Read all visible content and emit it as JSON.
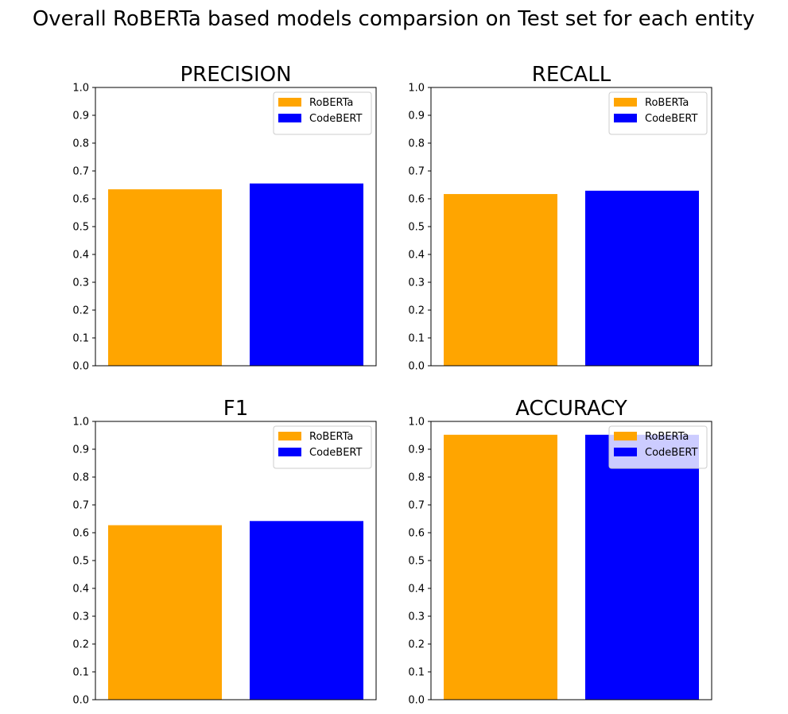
{
  "title": "Overall RoBERTa based models comparsion on Test set for each entity",
  "legend": [
    {
      "label": "RoBERTa",
      "color": "#ffa500"
    },
    {
      "label": "CodeBERT",
      "color": "#0000ff"
    }
  ],
  "chart_data": [
    {
      "type": "bar",
      "title": "PRECISION",
      "categories": [
        "RoBERTa",
        "CodeBERT"
      ],
      "series": [
        {
          "values": [
            0.634,
            0.655
          ]
        }
      ],
      "colors": [
        "#ffa500",
        "#0000ff"
      ],
      "xlabel": "",
      "ylabel": "",
      "ylim": [
        0,
        1
      ],
      "yticks": [
        "0.0",
        "0.1",
        "0.2",
        "0.3",
        "0.4",
        "0.5",
        "0.6",
        "0.7",
        "0.8",
        "0.9",
        "1.0"
      ],
      "grid": false,
      "legend_position": "top-right"
    },
    {
      "type": "bar",
      "title": "RECALL",
      "categories": [
        "RoBERTa",
        "CodeBERT"
      ],
      "series": [
        {
          "values": [
            0.617,
            0.629
          ]
        }
      ],
      "colors": [
        "#ffa500",
        "#0000ff"
      ],
      "xlabel": "",
      "ylabel": "",
      "ylim": [
        0,
        1
      ],
      "yticks": [
        "0.0",
        "0.1",
        "0.2",
        "0.3",
        "0.4",
        "0.5",
        "0.6",
        "0.7",
        "0.8",
        "0.9",
        "1.0"
      ],
      "grid": false,
      "legend_position": "top-right"
    },
    {
      "type": "bar",
      "title": "F1",
      "categories": [
        "RoBERTa",
        "CodeBERT"
      ],
      "series": [
        {
          "values": [
            0.627,
            0.642
          ]
        }
      ],
      "colors": [
        "#ffa500",
        "#0000ff"
      ],
      "xlabel": "",
      "ylabel": "",
      "ylim": [
        0,
        1
      ],
      "yticks": [
        "0.0",
        "0.1",
        "0.2",
        "0.3",
        "0.4",
        "0.5",
        "0.6",
        "0.7",
        "0.8",
        "0.9",
        "1.0"
      ],
      "grid": false,
      "legend_position": "top-right"
    },
    {
      "type": "bar",
      "title": "ACCURACY",
      "categories": [
        "RoBERTa",
        "CodeBERT"
      ],
      "series": [
        {
          "values": [
            0.952,
            0.952
          ]
        }
      ],
      "colors": [
        "#ffa500",
        "#0000ff"
      ],
      "xlabel": "",
      "ylabel": "",
      "ylim": [
        0,
        1
      ],
      "yticks": [
        "0.0",
        "0.1",
        "0.2",
        "0.3",
        "0.4",
        "0.5",
        "0.6",
        "0.7",
        "0.8",
        "0.9",
        "1.0"
      ],
      "grid": false,
      "legend_position": "top-right"
    }
  ]
}
